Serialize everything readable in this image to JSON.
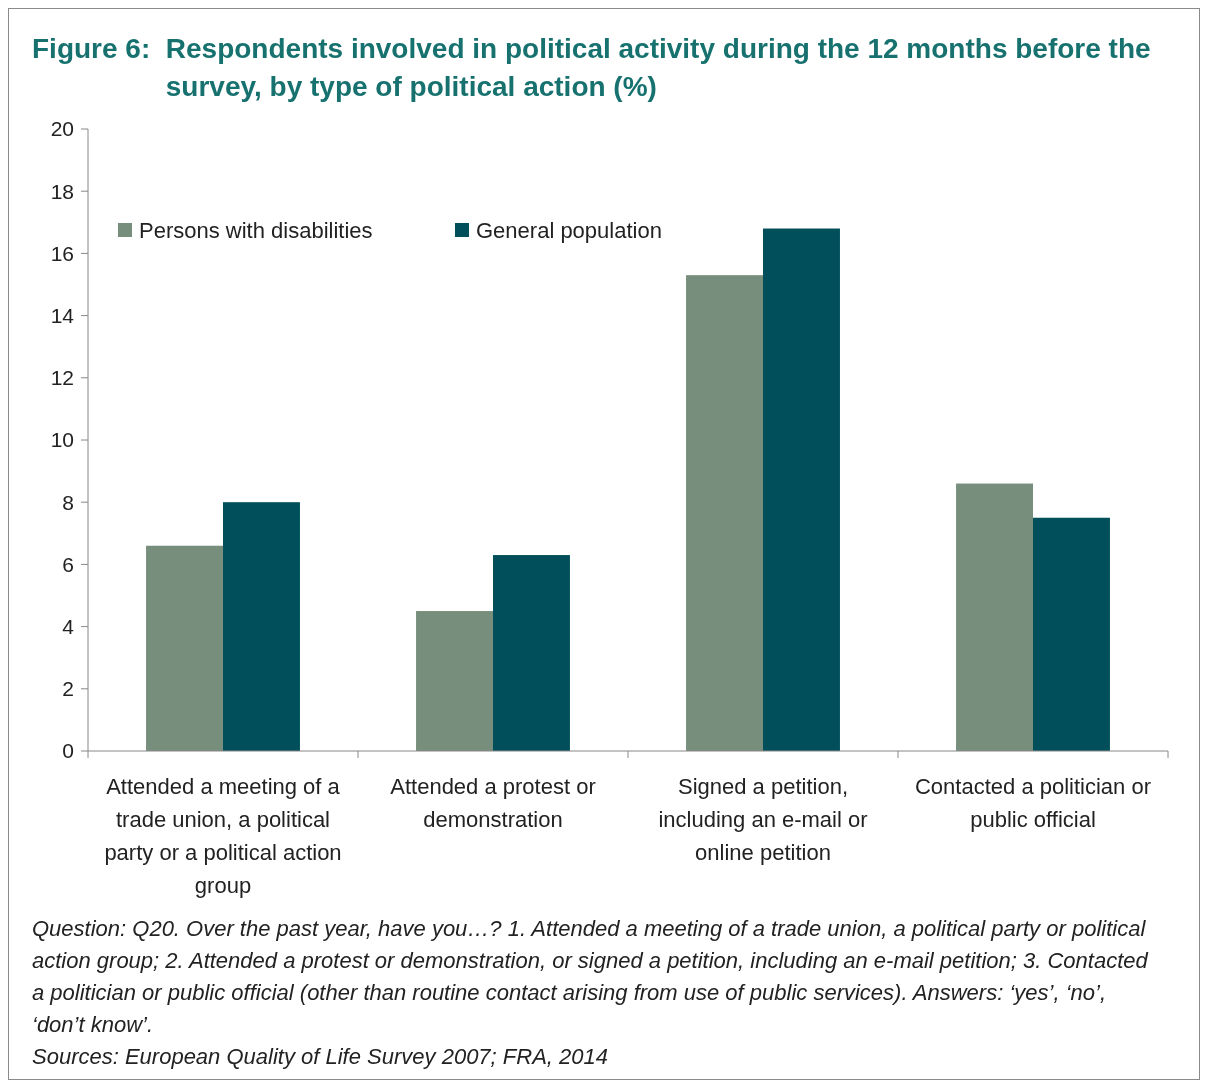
{
  "chart_data": {
    "type": "bar",
    "title": "Figure 6: Respondents involved in political activity during the 12 months before the survey, by type of political action (%)",
    "categories": [
      "Attended a meeting of a trade union, a political party or a political action group",
      "Attended a protest or demonstration",
      "Signed a petition, including an e-mail or online petition",
      "Contacted a politician or public official"
    ],
    "series": [
      {
        "name": "Persons with disabilities",
        "color": "#778e7c",
        "values": [
          6.6,
          4.5,
          15.3,
          8.6
        ]
      },
      {
        "name": "General population",
        "color": "#004f5a",
        "values": [
          8.0,
          6.3,
          16.8,
          7.5
        ]
      }
    ],
    "ylim": [
      0,
      20
    ],
    "yticks": [
      0,
      2,
      4,
      6,
      8,
      10,
      12,
      14,
      16,
      18,
      20
    ],
    "grid": false,
    "legend": "top left",
    "annotations": [
      "Question: Q20. Over the past year, have you…? 1. Attended a meeting of a trade union, a political party or political action group; 2. Attended a protest or demonstration, or signed a petition, including an e-mail petition; 3. Contacted a politician or public official (other than routine contact arising from use of public services). Answers: ‘yes’, ‘no’, ‘don’t know’.",
      "Sources: European Quality of Life Survey 2007; FRA, 2014"
    ]
  }
}
